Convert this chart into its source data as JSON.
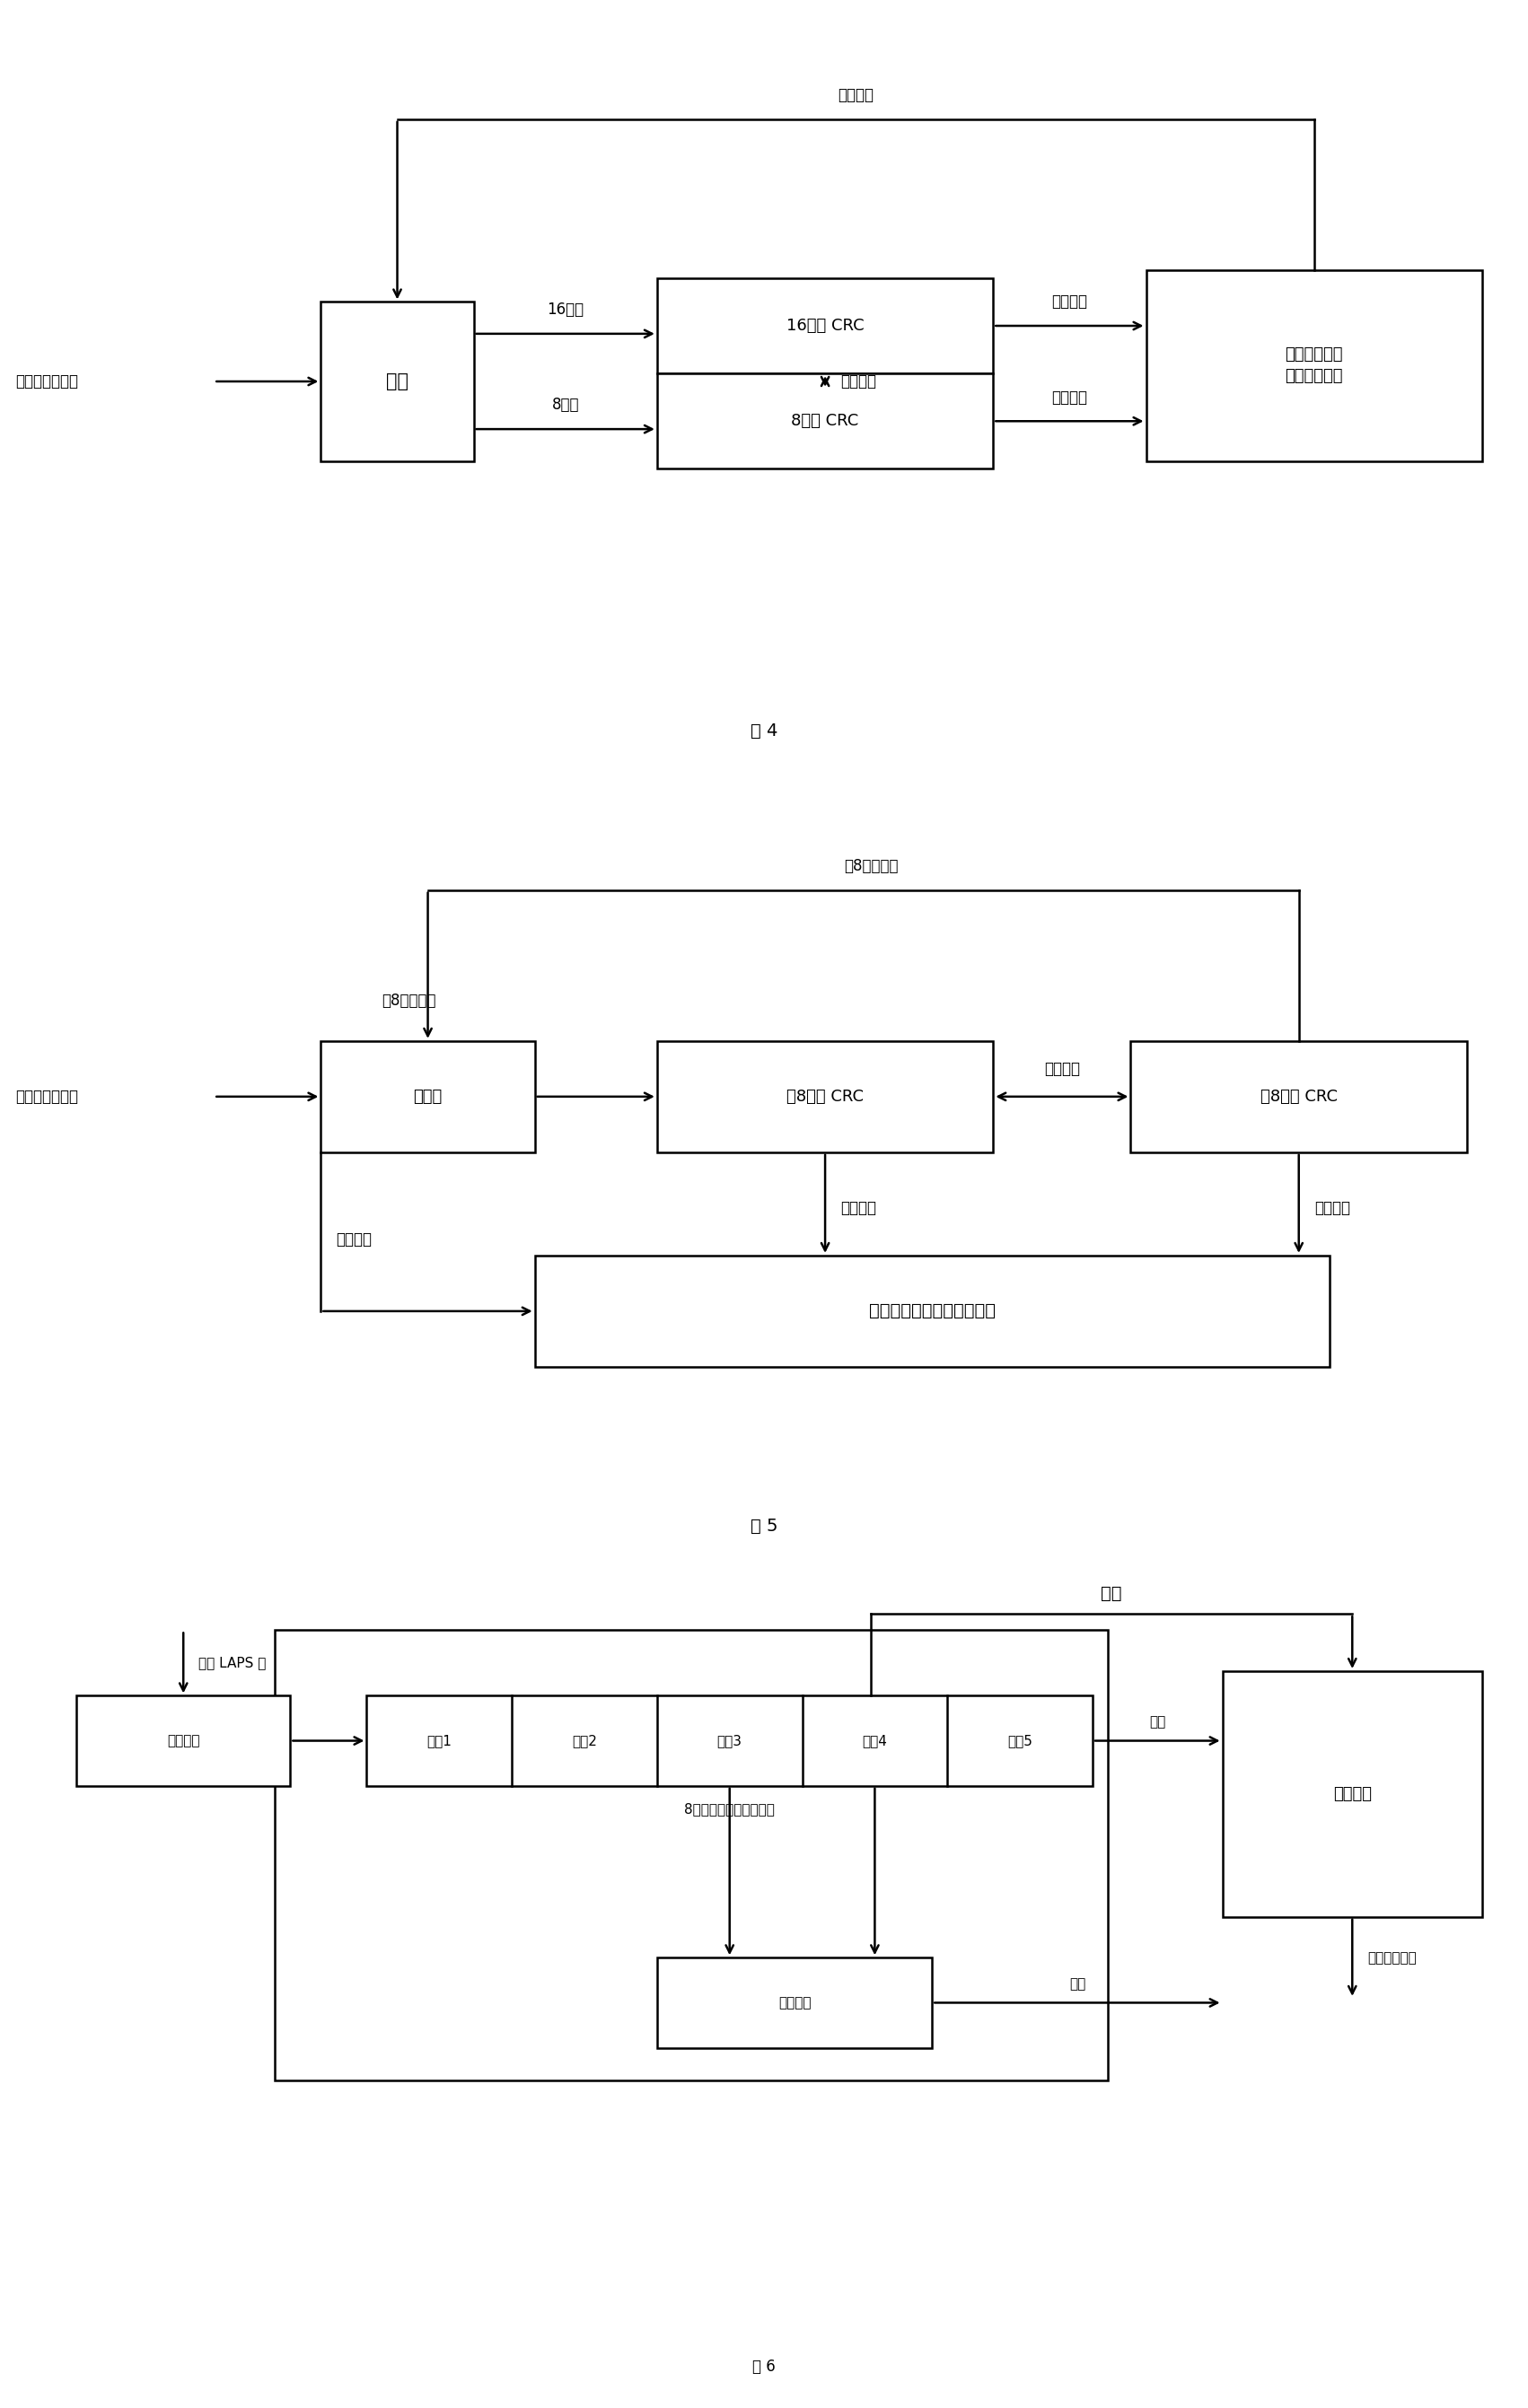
{
  "fig4": {
    "title": "图 4",
    "input_label": "转义以后的数据",
    "top_arrow_label": "选择控制",
    "box_select": "选择",
    "box_16crc": "16比特 CRC",
    "box_8crc": "8比特 CRC",
    "box_result": "结果选择比较\n以及输出告警",
    "arrow_16bit": "16比特",
    "arrow_8bit": "8比特",
    "arrow_middle": "中间结果",
    "arrow_final16": "最后结果",
    "arrow_final8": "最后结果"
  },
  "fig5": {
    "title": "图 5",
    "input_label": "转义以后的数据",
    "top_arrow_label": "低8比特数据",
    "box_preprocess": "预处理",
    "box_hi8crc": "高8比特 CRC",
    "box_lo8crc": "低8比特 CRC",
    "box_result": "结果选择比较以及告警产生",
    "label_hi8data": "高8比特数据",
    "label_middle": "中间结果",
    "label_final_hi": "最后结果",
    "label_final_lo": "最后结果",
    "label_select": "选择控制"
  },
  "fig6": {
    "title": "图 6",
    "input_label": "输入 LAPS 帧",
    "box_discard": "帧头丢弃",
    "pipeline_label": "8比特位宽数据移位管道",
    "data_cells": [
      "数据1",
      "数据2",
      "数据3",
      "数据4",
      "数据5"
    ],
    "box_buffer": "数据缓存",
    "box_assemble": "数据组装",
    "top_label": "数据",
    "arrow_data1": "数据",
    "arrow_data2": "数据",
    "output_label": "净荷数据输出"
  },
  "background_color": "#ffffff",
  "font_size": 12
}
